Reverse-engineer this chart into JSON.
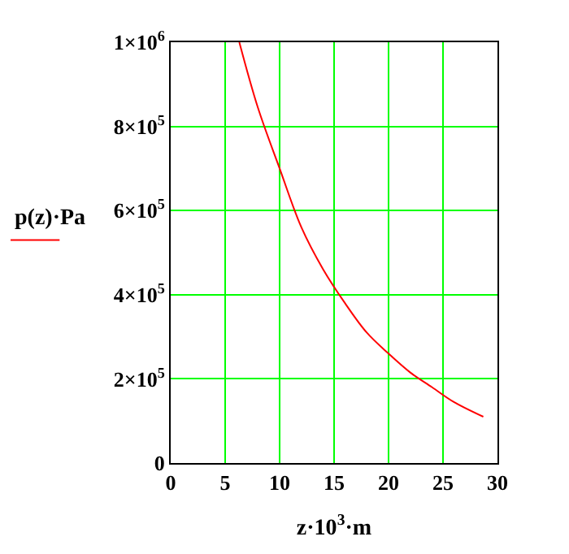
{
  "chart_data": {
    "type": "line",
    "xlabel": "z·10$^{3}$·m",
    "ylabel": "p(z)·Pa",
    "series": [
      {
        "color": "#ff0000",
        "x": [
          6.3,
          8,
          10,
          12,
          14,
          16,
          18,
          20,
          22,
          24,
          26,
          28.7
        ],
        "values": [
          1000000,
          845000,
          700000,
          560000,
          460000,
          380000,
          310000,
          260000,
          215000,
          180000,
          145000,
          110000
        ]
      }
    ],
    "xlim": [
      0,
      30
    ],
    "xticks": [
      0,
      5,
      10,
      15,
      20,
      25,
      30
    ],
    "ylim": [
      0,
      1000000
    ],
    "yticks": [
      0,
      {
        "value": 200000,
        "label": "2×10$^{5}$"
      },
      {
        "value": 400000,
        "label": "4×10$^{5}$"
      },
      {
        "value": 600000,
        "label": "6×10$^{5}$"
      },
      {
        "value": 800000,
        "label": "8×10$^{5}$"
      },
      {
        "value": 1000000,
        "label": "1×10$^{6}$"
      }
    ],
    "grid": true
  }
}
